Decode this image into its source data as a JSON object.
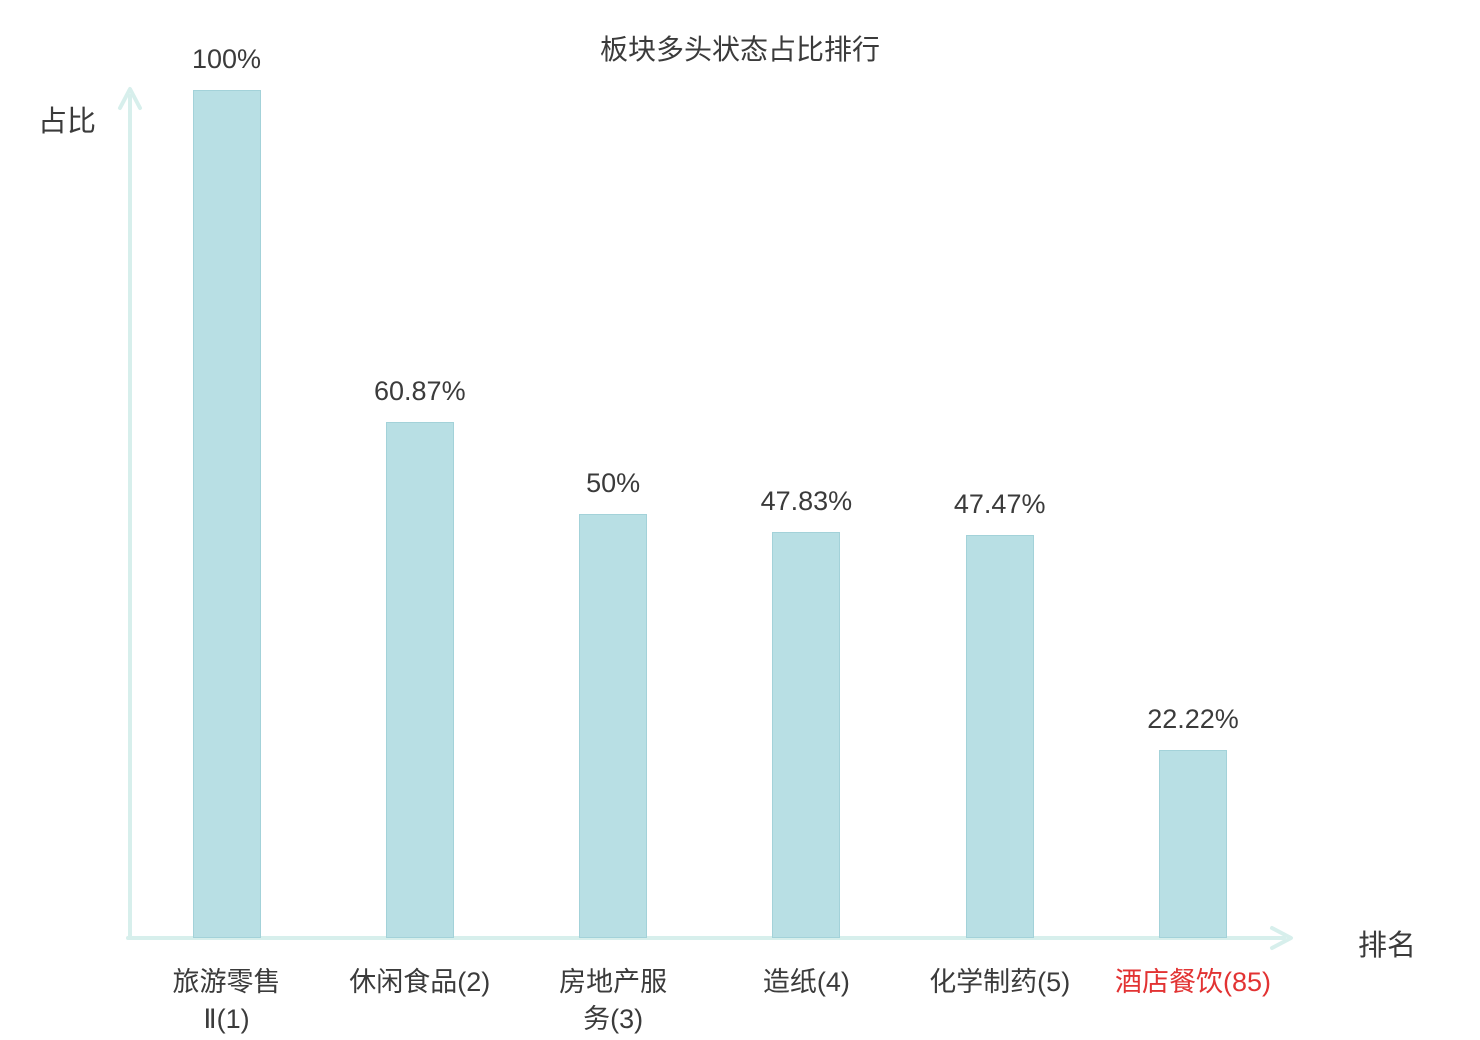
{
  "chart_data": {
    "type": "bar",
    "title": "板块多头状态占比排行",
    "ylabel": "占比",
    "xlabel": "排名",
    "ylim": [
      0,
      100
    ],
    "grid": false,
    "legend": "none",
    "categories": [
      {
        "name": "旅游零售Ⅱ(1)",
        "label_lines": [
          "旅游零售",
          "Ⅱ(1)"
        ],
        "highlight": false
      },
      {
        "name": "休闲食品(2)",
        "label_lines": [
          "休闲食品(2)"
        ],
        "highlight": false
      },
      {
        "name": "房地产服务(3)",
        "label_lines": [
          "房地产服",
          "务(3)"
        ],
        "highlight": false
      },
      {
        "name": "造纸(4)",
        "label_lines": [
          "造纸(4)"
        ],
        "highlight": false
      },
      {
        "name": "化学制药(5)",
        "label_lines": [
          "化学制药(5)"
        ],
        "highlight": false
      },
      {
        "name": "酒店餐饮(85)",
        "label_lines": [
          "酒店餐饮(85)"
        ],
        "highlight": true
      }
    ],
    "values": [
      100,
      60.87,
      50,
      47.83,
      47.47,
      22.22
    ],
    "value_labels": [
      "100%",
      "60.87%",
      "50%",
      "47.83%",
      "47.47%",
      "22.22%"
    ],
    "colors": {
      "bar_fill": "#b8dfe4",
      "bar_border": "#a3d2d9",
      "axis": "#d7efec",
      "text": "#3b3b3b",
      "highlight": "#e23333"
    }
  }
}
